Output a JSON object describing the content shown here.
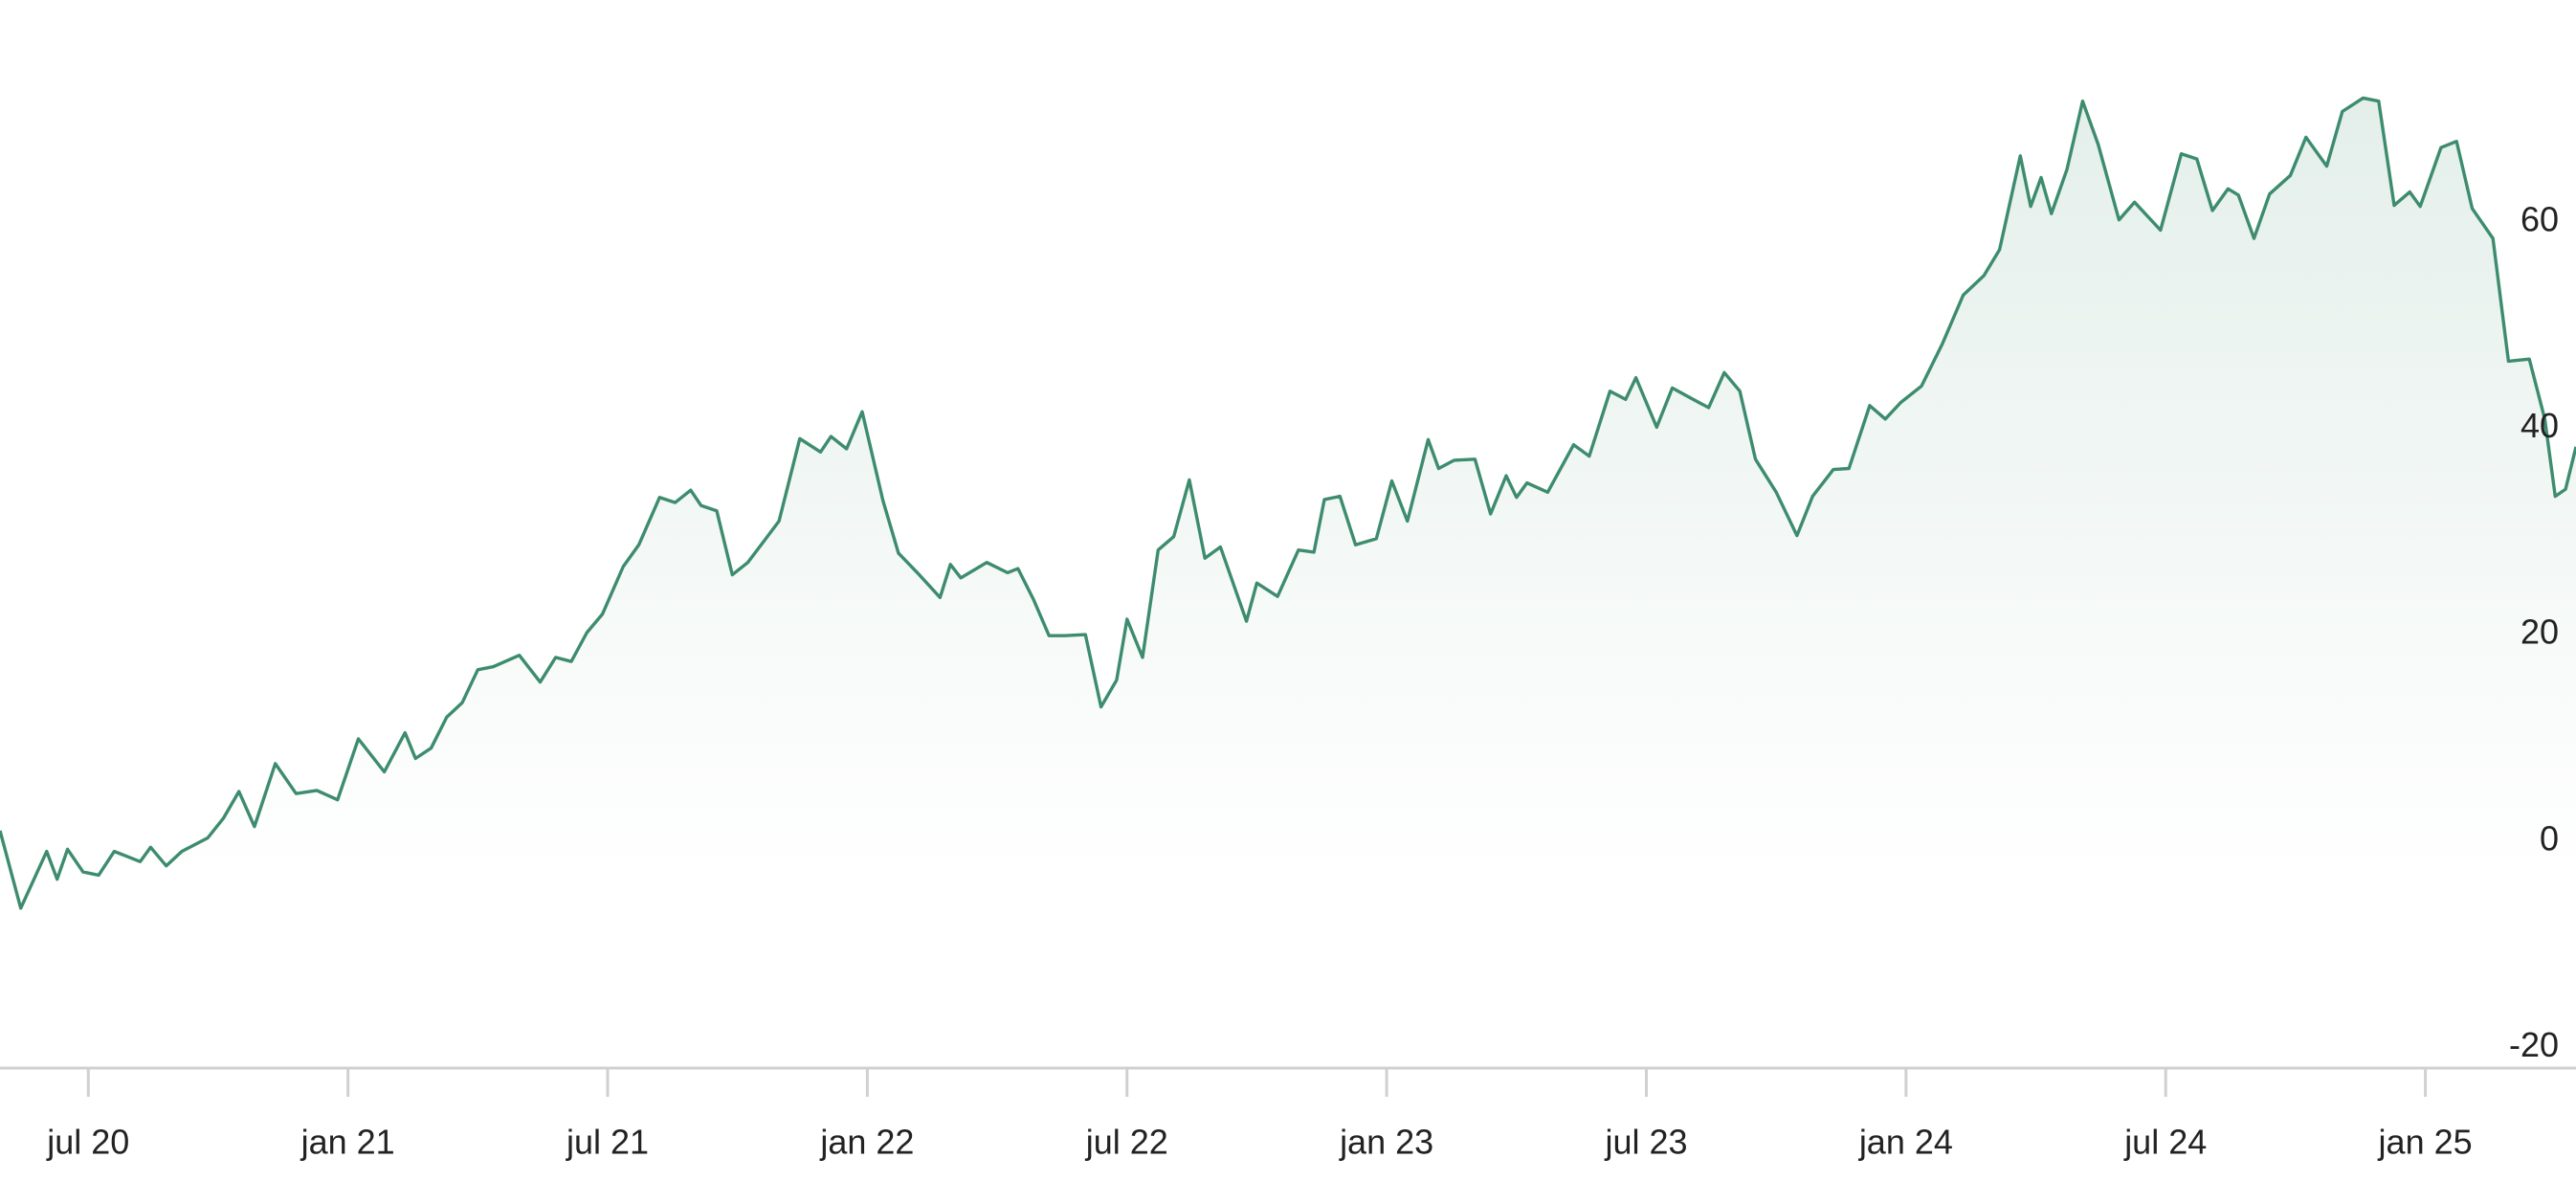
{
  "chart_data": {
    "type": "area",
    "x": [
      2020.33,
      2020.37,
      2020.42,
      2020.44,
      2020.46,
      2020.49,
      2020.52,
      2020.55,
      2020.6,
      2020.62,
      2020.65,
      2020.68,
      2020.73,
      2020.76,
      2020.79,
      2020.82,
      2020.86,
      2020.9,
      2020.94,
      2020.98,
      2021.02,
      2021.07,
      2021.11,
      2021.13,
      2021.16,
      2021.19,
      2021.22,
      2021.25,
      2021.28,
      2021.33,
      2021.37,
      2021.4,
      2021.43,
      2021.46,
      2021.49,
      2021.53,
      2021.56,
      2021.6,
      2021.63,
      2021.66,
      2021.68,
      2021.71,
      2021.74,
      2021.77,
      2021.8,
      2021.83,
      2021.87,
      2021.91,
      2021.93,
      2021.96,
      2021.99,
      2022.03,
      2022.06,
      2022.1,
      2022.14,
      2022.16,
      2022.18,
      2022.23,
      2022.27,
      2022.29,
      2022.32,
      2022.35,
      2022.38,
      2022.42,
      2022.45,
      2022.48,
      2022.5,
      2022.53,
      2022.56,
      2022.59,
      2022.62,
      2022.65,
      2022.68,
      2022.73,
      2022.75,
      2022.79,
      2022.83,
      2022.86,
      2022.88,
      2022.91,
      2022.94,
      2022.98,
      2023.01,
      2023.04,
      2023.08,
      2023.1,
      2023.13,
      2023.17,
      2023.2,
      2023.23,
      2023.25,
      2023.27,
      2023.31,
      2023.36,
      2023.39,
      2023.43,
      2023.46,
      2023.48,
      2023.52,
      2023.55,
      2023.59,
      2023.62,
      2023.65,
      2023.68,
      2023.71,
      2023.75,
      2023.79,
      2023.82,
      2023.86,
      2023.89,
      2023.93,
      2023.96,
      2023.99,
      2024.03,
      2024.07,
      2024.11,
      2024.15,
      2024.18,
      2024.22,
      2024.24,
      2024.26,
      2024.28,
      2024.31,
      2024.34,
      2024.37,
      2024.41,
      2024.44,
      2024.49,
      2024.53,
      2024.56,
      2024.59,
      2024.62,
      2024.64,
      2024.67,
      2024.7,
      2024.74,
      2024.77,
      2024.81,
      2024.84,
      2024.88,
      2024.91,
      2024.94,
      2024.97,
      2024.99,
      2025.03,
      2025.06,
      2025.09,
      2025.13,
      2025.16,
      2025.2,
      2025.23,
      2025.25,
      2025.27,
      2025.29
    ],
    "series": [
      {
        "color": "#3d8c6e",
        "values": [
          1,
          -6.5,
          -1,
          -3.7,
          -0.8,
          -3,
          -3.3,
          -1,
          -2,
          -0.6,
          -2.4,
          -1,
          0.3,
          2.2,
          4.8,
          1.4,
          7.5,
          4.6,
          4.9,
          4,
          9.9,
          6.7,
          10.5,
          8,
          9,
          12,
          13.4,
          16.6,
          16.9,
          18,
          15.4,
          17.8,
          17.4,
          20.2,
          22,
          26.6,
          28.7,
          33.3,
          32.8,
          34,
          32.5,
          32,
          25.8,
          27,
          29,
          31,
          39,
          37.7,
          39.2,
          38,
          41.6,
          33,
          27.9,
          25.8,
          23.6,
          26.8,
          25.5,
          27,
          26,
          26.4,
          23.4,
          19.9,
          19.9,
          20,
          13,
          15.6,
          21.5,
          17.8,
          28.2,
          29.5,
          35,
          27.4,
          28.5,
          21.3,
          25,
          23.7,
          28.2,
          28,
          33.1,
          33.4,
          28.7,
          29.3,
          34.9,
          31,
          38.9,
          36.1,
          36.9,
          37,
          31.7,
          35.4,
          33.3,
          34.7,
          33.8,
          38.4,
          37.3,
          43.6,
          42.8,
          44.9,
          40.1,
          43.9,
          42.8,
          42,
          45.4,
          43.6,
          37,
          33.8,
          29.6,
          33.4,
          36,
          36.1,
          42.2,
          40.9,
          42.5,
          44.1,
          48.2,
          52.9,
          54.8,
          57.3,
          66.4,
          61.5,
          64.3,
          60.8,
          65.1,
          71.7,
          67.5,
          60.2,
          61.9,
          59.2,
          66.6,
          66.1,
          61.1,
          63.2,
          62.6,
          58.4,
          62.7,
          64.5,
          68.2,
          65.4,
          70.7,
          72,
          71.7,
          61.6,
          62.9,
          61.5,
          67.2,
          67.8,
          61.3,
          58.4,
          46.5,
          46.7,
          40.9,
          33.4,
          34.1,
          38.2
        ]
      }
    ],
    "xlim": [
      2020.33,
      2025.29
    ],
    "xticks": [
      {
        "value": 2020.5,
        "label": "jul 20"
      },
      {
        "value": 2021,
        "label": "jan 21"
      },
      {
        "value": 2021.5,
        "label": "jul 21"
      },
      {
        "value": 2022,
        "label": "jan 22"
      },
      {
        "value": 2022.5,
        "label": "jul 22"
      },
      {
        "value": 2023,
        "label": "jan 23"
      },
      {
        "value": 2023.5,
        "label": "jul 23"
      },
      {
        "value": 2024,
        "label": "jan 24"
      },
      {
        "value": 2024.5,
        "label": "jul 24"
      },
      {
        "value": 2025,
        "label": "jan 25"
      }
    ],
    "ylim": [
      -22,
      81.5
    ],
    "yticks": [
      -20,
      0,
      20,
      40,
      60
    ]
  }
}
